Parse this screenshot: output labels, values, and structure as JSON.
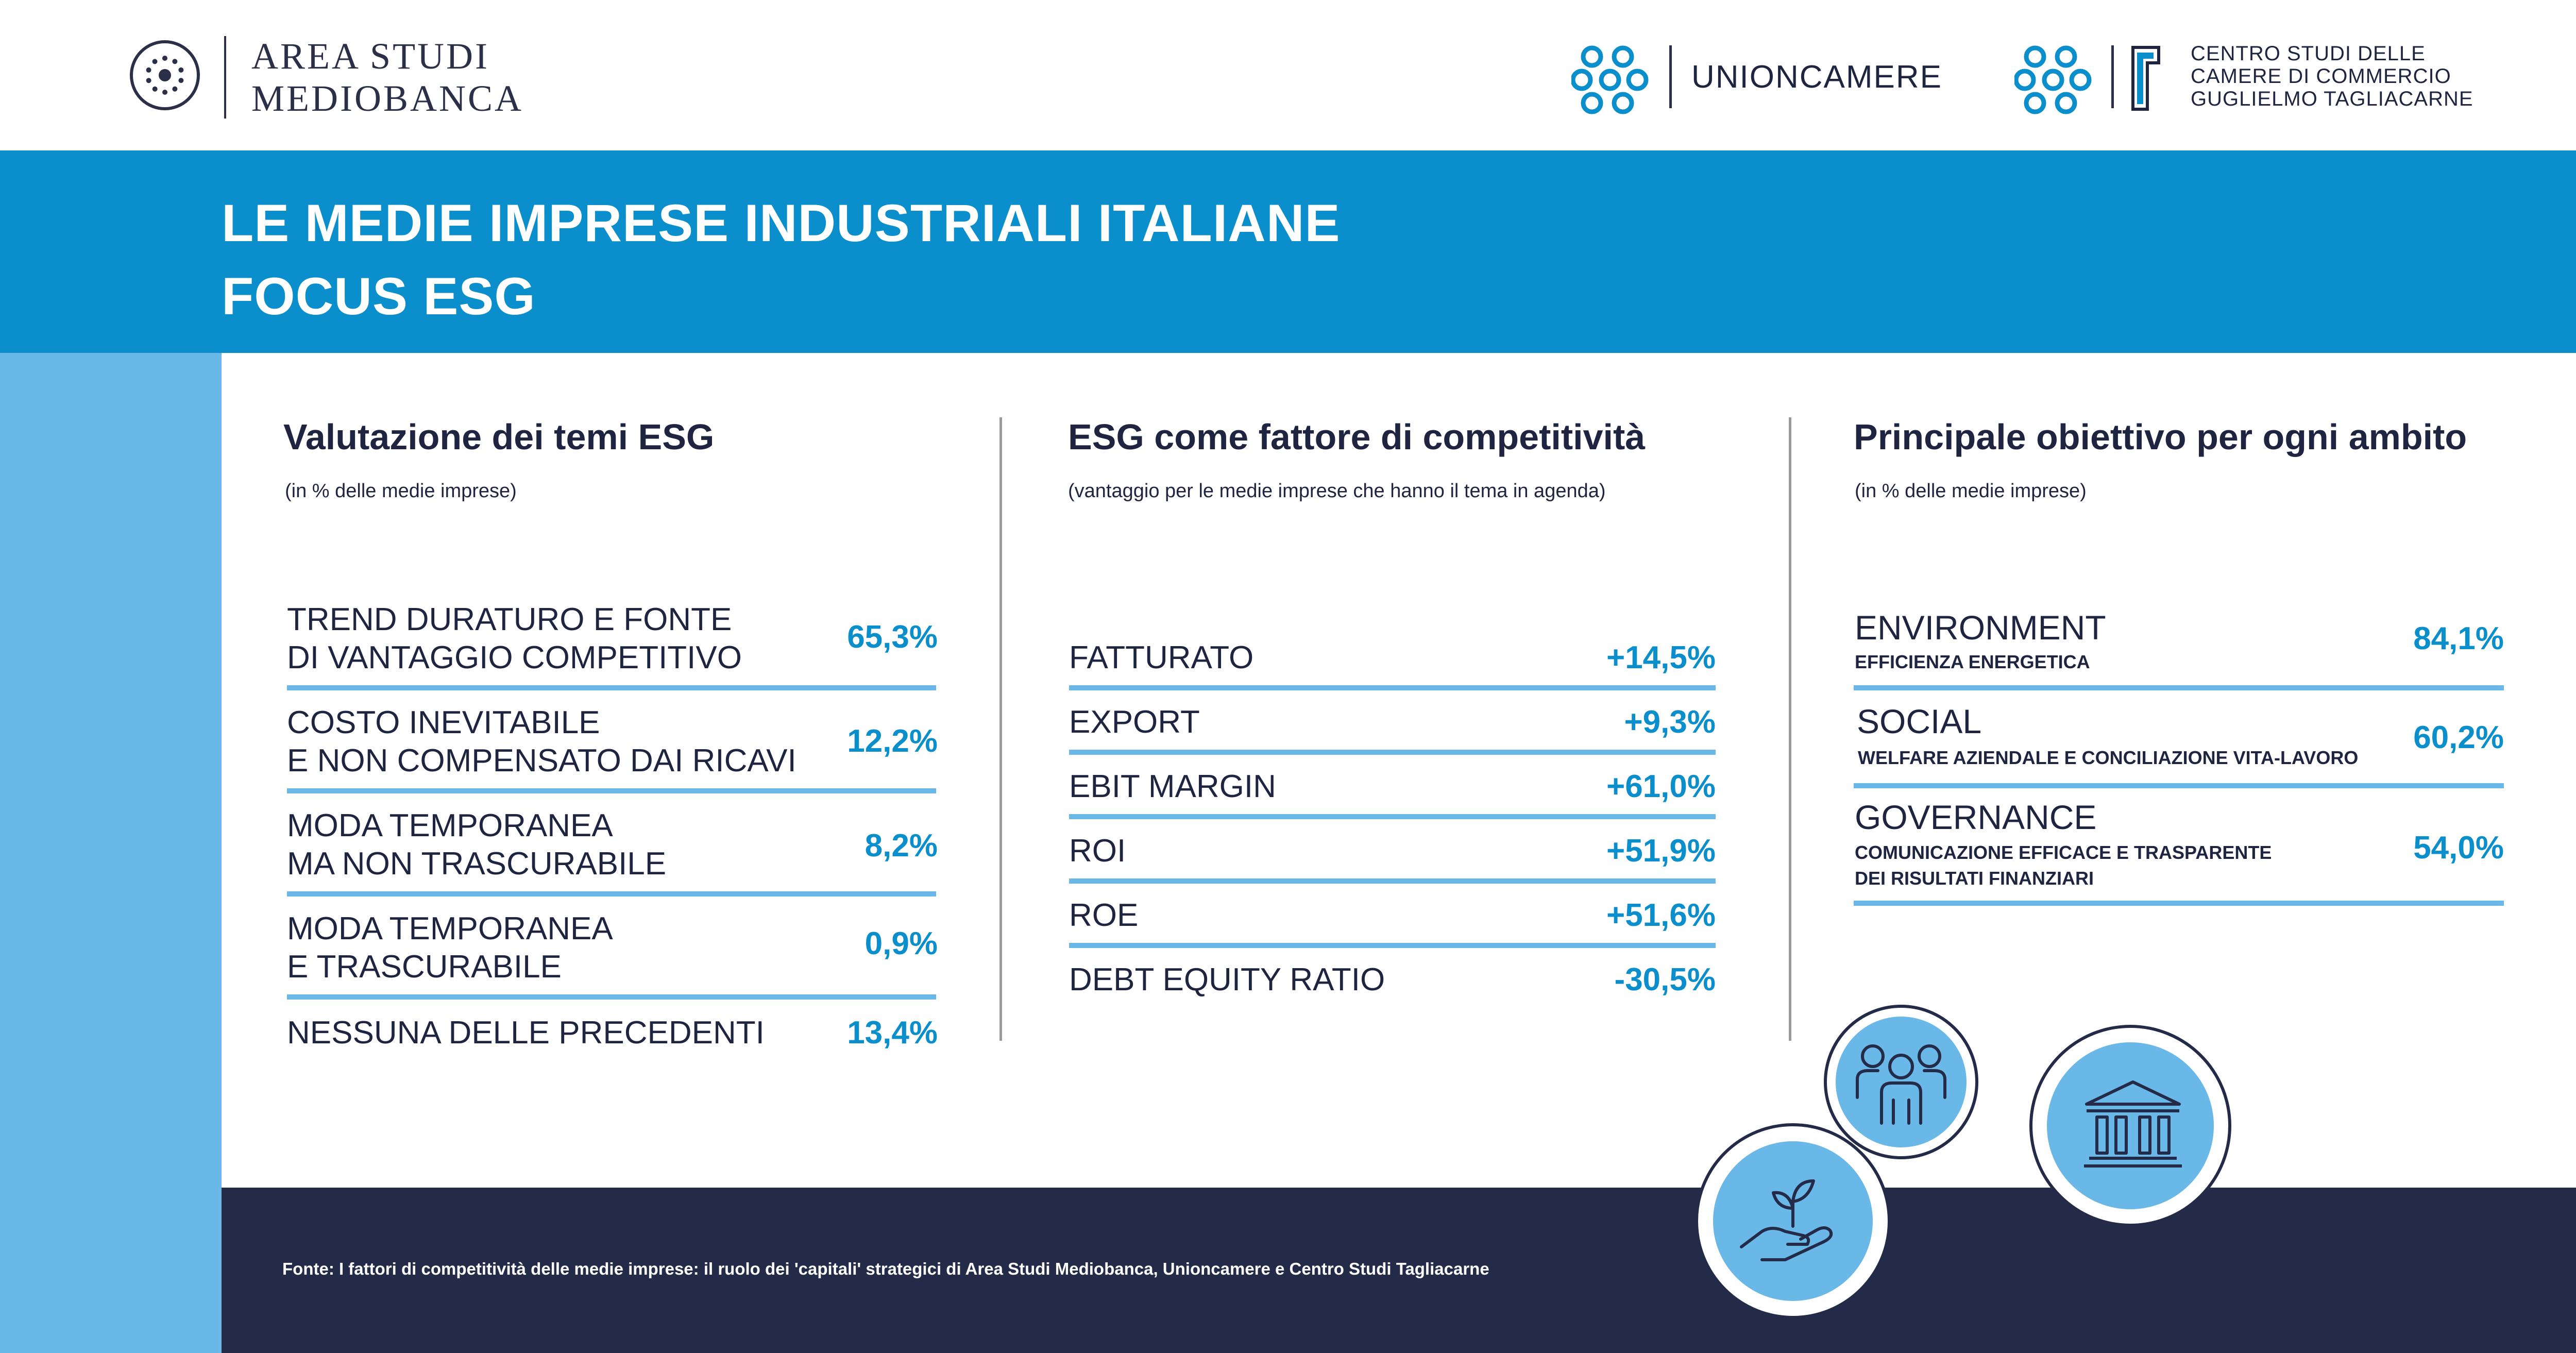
{
  "header": {
    "mediobanca": {
      "line1": "AREA STUDI",
      "line2": "MEDIOBANCA"
    },
    "unioncamere": "UNIONCAMERE",
    "centro_studi": {
      "line1": "CENTRO STUDI DELLE",
      "line2": "CAMERE DI COMMERCIO",
      "line3": "GUGLIELMO TAGLIACARNE"
    }
  },
  "title": {
    "line1": "LE MEDIE IMPRESE INDUSTRIALI ITALIANE",
    "line2": "FOCUS ESG"
  },
  "col1": {
    "title": "Valutazione dei temi ESG",
    "subtitle": "(in % delle medie imprese)",
    "rows": [
      {
        "line1": "TREND DURATURO E FONTE",
        "line2": "DI VANTAGGIO COMPETITIVO",
        "value": "65,3%"
      },
      {
        "line1": "COSTO INEVITABILE",
        "line2": "E NON COMPENSATO DAI RICAVI",
        "value": "12,2%"
      },
      {
        "line1": "MODA TEMPORANEA",
        "line2": "MA NON TRASCURABILE",
        "value": "8,2%"
      },
      {
        "line1": "MODA TEMPORANEA",
        "line2": "E TRASCURABILE",
        "value": "0,9%"
      },
      {
        "line1": "NESSUNA DELLE PRECEDENTI",
        "value": "13,4%"
      }
    ]
  },
  "col2": {
    "title": "ESG come fattore di competitività",
    "subtitle": "(vantaggio per le medie imprese che hanno il tema in agenda)",
    "rows": [
      {
        "label": "FATTURATO",
        "value": "+14,5%"
      },
      {
        "label": "EXPORT",
        "value": "+9,3%"
      },
      {
        "label": "EBIT MARGIN",
        "value": "+61,0%"
      },
      {
        "label": "ROI",
        "value": "+51,9%"
      },
      {
        "label": "ROE",
        "value": "+51,6%"
      },
      {
        "label": "DEBT EQUITY RATIO",
        "value": "-30,5%"
      }
    ]
  },
  "col3": {
    "title": "Principale obiettivo per ogni ambito",
    "subtitle": "(in % delle medie imprese)",
    "rows": [
      {
        "name": "ENVIRONMENT",
        "sub1": "EFFICIENZA ENERGETICA",
        "value": "84,1%"
      },
      {
        "name": "SOCIAL",
        "sub1": "WELFARE AZIENDALE E CONCILIAZIONE VITA-LAVORO",
        "value": "60,2%"
      },
      {
        "name": "GOVERNANCE",
        "sub1": "COMUNICAZIONE EFFICACE E TRASPARENTE",
        "sub2": "DEI RISULTATI FINANZIARI",
        "value": "54,0%"
      }
    ]
  },
  "icons": [
    "people-icon",
    "plant-hand-icon",
    "bank-building-icon"
  ],
  "colors": {
    "accent": "#0a8fcc",
    "light_blue": "#6ab8e8",
    "navy": "#242b48",
    "text": "#1f2540"
  },
  "footer": {
    "source": "Fonte: I fattori di competitività delle medie imprese: il ruolo dei 'capitali' strategici di Area Studi Mediobanca, Unioncamere e Centro Studi Tagliacarne"
  }
}
